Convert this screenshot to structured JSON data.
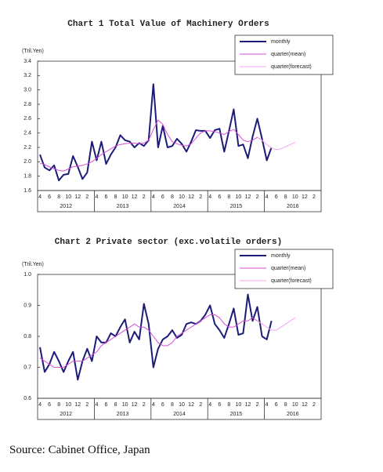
{
  "chart_data": [
    {
      "type": "line",
      "title": "Chart 1 Total Value of Machinery Orders",
      "y_label": "(Tril.Yen)",
      "categories": [
        "4",
        null,
        "6",
        null,
        "8",
        null,
        "10",
        null,
        "12",
        null,
        "2",
        null,
        "4",
        null,
        "6",
        null,
        "8",
        null,
        "10",
        null,
        "12",
        null,
        "2",
        null,
        "4",
        null,
        "6",
        null,
        "8",
        null,
        "10",
        null,
        "12",
        null,
        "2",
        null,
        "4",
        null,
        "6",
        null,
        "8",
        null,
        "10",
        null,
        "12",
        null,
        "2",
        null,
        "4",
        null,
        "6",
        null,
        "8",
        null,
        "10",
        null,
        "12",
        null,
        "2",
        null
      ],
      "groups": [
        "2012",
        "2013",
        "2014",
        "2015",
        "2016"
      ],
      "series": [
        {
          "name": "monthly",
          "color": "#1c1c78",
          "width": 2,
          "values": [
            2.1,
            1.92,
            1.88,
            1.95,
            1.74,
            1.82,
            1.83,
            2.08,
            1.93,
            1.76,
            1.85,
            2.28,
            2.02,
            2.28,
            1.97,
            2.1,
            2.2,
            2.37,
            2.3,
            2.28,
            2.2,
            2.26,
            2.22,
            2.3,
            3.08,
            2.2,
            2.5,
            2.2,
            2.22,
            2.32,
            2.25,
            2.14,
            2.28,
            2.44,
            2.43,
            2.43,
            2.33,
            2.44,
            2.46,
            2.14,
            2.43,
            2.73,
            2.22,
            2.24,
            2.05,
            2.35,
            2.6,
            2.32,
            2.02,
            2.2,
            null,
            null,
            null,
            null,
            null,
            null,
            null,
            null,
            null,
            null
          ]
        },
        {
          "name": "quarter(mean)",
          "color": "#d84fd8",
          "width": 1,
          "values": [
            1.98,
            1.96,
            1.93,
            1.9,
            1.88,
            1.87,
            1.9,
            1.93,
            1.94,
            1.95,
            1.97,
            2.0,
            2.05,
            2.1,
            2.14,
            2.18,
            2.22,
            2.24,
            2.25,
            2.26,
            2.26,
            2.25,
            2.26,
            2.3,
            2.45,
            2.58,
            2.52,
            2.38,
            2.28,
            2.25,
            2.23,
            2.22,
            2.25,
            2.33,
            2.4,
            2.43,
            2.43,
            2.42,
            2.4,
            2.38,
            2.42,
            2.45,
            2.38,
            2.3,
            2.28,
            2.3,
            2.34,
            2.3,
            null,
            null,
            null,
            null,
            null,
            null,
            null,
            null,
            null,
            null,
            null,
            null
          ]
        },
        {
          "name": "quarter(forecast)",
          "color": "#f2a6f2",
          "width": 1,
          "values": [
            null,
            null,
            null,
            null,
            null,
            null,
            null,
            null,
            null,
            null,
            null,
            null,
            null,
            null,
            null,
            null,
            null,
            null,
            null,
            null,
            null,
            null,
            null,
            null,
            null,
            null,
            null,
            null,
            null,
            null,
            null,
            null,
            null,
            null,
            null,
            null,
            null,
            null,
            null,
            null,
            null,
            null,
            null,
            null,
            null,
            null,
            2.34,
            2.3,
            2.24,
            2.19,
            2.17,
            2.18,
            2.21,
            2.24,
            2.27,
            null,
            null,
            null,
            null,
            null
          ]
        }
      ],
      "ylim": [
        1.6,
        3.4
      ],
      "yticks": [
        1.6,
        1.8,
        {
          "value": 2,
          "label": "2.0"
        },
        2.2,
        2.4,
        2.6,
        2.8,
        {
          "value": 3,
          "label": "3.0"
        },
        3.2,
        3.4
      ],
      "legend": "upper right"
    },
    {
      "type": "line",
      "title": "Chart 2 Private sector (exc.volatile orders)",
      "y_label": "(Tril.Yen)",
      "categories": [
        "4",
        null,
        "6",
        null,
        "8",
        null,
        "10",
        null,
        "12",
        null,
        "2",
        null,
        "4",
        null,
        "6",
        null,
        "8",
        null,
        "10",
        null,
        "12",
        null,
        "2",
        null,
        "4",
        null,
        "6",
        null,
        "8",
        null,
        "10",
        null,
        "12",
        null,
        "2",
        null,
        "4",
        null,
        "6",
        null,
        "8",
        null,
        "10",
        null,
        "12",
        null,
        "2",
        null,
        "4",
        null,
        "6",
        null,
        "8",
        null,
        "10",
        null,
        "12",
        null,
        "2",
        null
      ],
      "groups": [
        "2012",
        "2013",
        "2014",
        "2015",
        "2016"
      ],
      "series": [
        {
          "name": "monthly",
          "color": "#1c1c78",
          "width": 2,
          "values": [
            0.765,
            0.685,
            0.71,
            0.75,
            0.72,
            0.685,
            0.72,
            0.75,
            0.66,
            0.72,
            0.76,
            0.72,
            0.8,
            0.78,
            0.78,
            0.81,
            0.8,
            0.83,
            0.855,
            0.78,
            0.815,
            0.79,
            0.905,
            0.84,
            0.7,
            0.76,
            0.79,
            0.8,
            0.82,
            0.795,
            0.805,
            0.84,
            0.845,
            0.84,
            0.85,
            0.87,
            0.9,
            0.84,
            0.82,
            0.795,
            0.84,
            0.89,
            0.805,
            0.81,
            0.935,
            0.85,
            0.895,
            0.8,
            0.79,
            0.85,
            null,
            null,
            null,
            null,
            null,
            null,
            null,
            null,
            null,
            null
          ]
        },
        {
          "name": "quarter(mean)",
          "color": "#d84fd8",
          "width": 1,
          "values": [
            0.73,
            0.72,
            0.71,
            0.7,
            0.7,
            0.7,
            0.71,
            0.72,
            0.72,
            0.72,
            0.73,
            0.74,
            0.75,
            0.77,
            0.78,
            0.79,
            0.8,
            0.81,
            0.82,
            0.83,
            0.84,
            0.83,
            0.83,
            0.82,
            0.8,
            0.78,
            0.77,
            0.77,
            0.78,
            0.8,
            0.81,
            0.82,
            0.83,
            0.84,
            0.85,
            0.86,
            0.87,
            0.87,
            0.86,
            0.84,
            0.83,
            0.83,
            0.84,
            0.85,
            0.85,
            0.86,
            0.85,
            0.84,
            null,
            null,
            null,
            null,
            null,
            null,
            null,
            null,
            null,
            null,
            null,
            null
          ]
        },
        {
          "name": "quarter(forecast)",
          "color": "#f2a6f2",
          "width": 1,
          "values": [
            null,
            null,
            null,
            null,
            null,
            null,
            null,
            null,
            null,
            null,
            null,
            null,
            null,
            null,
            null,
            null,
            null,
            null,
            null,
            null,
            null,
            null,
            null,
            null,
            null,
            null,
            null,
            null,
            null,
            null,
            null,
            null,
            null,
            null,
            null,
            null,
            null,
            null,
            null,
            null,
            null,
            null,
            null,
            null,
            null,
            null,
            0.85,
            0.84,
            0.83,
            0.82,
            0.82,
            0.83,
            0.84,
            0.85,
            0.86,
            null,
            null,
            null,
            null,
            null
          ]
        }
      ],
      "ylim": [
        0.6,
        1.0
      ],
      "yticks": [
        0.6,
        0.7,
        0.8,
        0.9,
        {
          "value": 1,
          "label": "1.0"
        }
      ],
      "legend": "upper right"
    }
  ],
  "source": "Source: Cabinet Office, Japan"
}
